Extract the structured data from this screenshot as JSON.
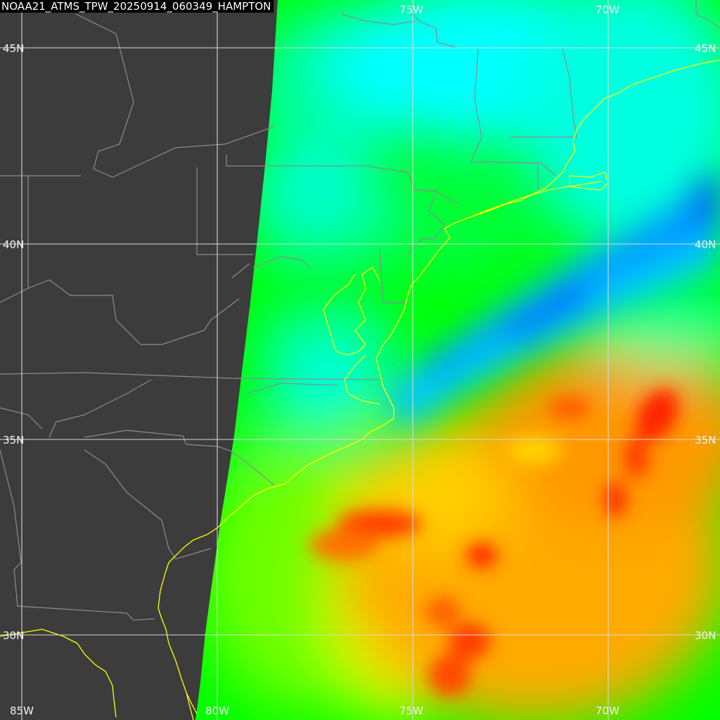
{
  "title": "NOAA21_ATMS_TPW_20250914_060349_HAMPTON",
  "lon_labels": {
    "top": [
      "75W",
      "70W"
    ],
    "bottom": [
      "85W",
      "80W",
      "75W",
      "70W"
    ]
  },
  "lat_labels": {
    "left": [
      "45N",
      "40N",
      "35N",
      "30N"
    ],
    "right": [
      "45N",
      "40N",
      "35N",
      "30N"
    ]
  },
  "colors": {
    "background": "#3c3c3c",
    "graticule": "#d9d9d9",
    "state_borders": "#8c8c8c",
    "coastline": "#ffff00",
    "tpw_scale": [
      "#0050ff",
      "#00a0ff",
      "#00ffff",
      "#00ff80",
      "#00ff00",
      "#80ff00",
      "#ffff00",
      "#ffa000",
      "#ff7800",
      "#ff2800"
    ]
  }
}
